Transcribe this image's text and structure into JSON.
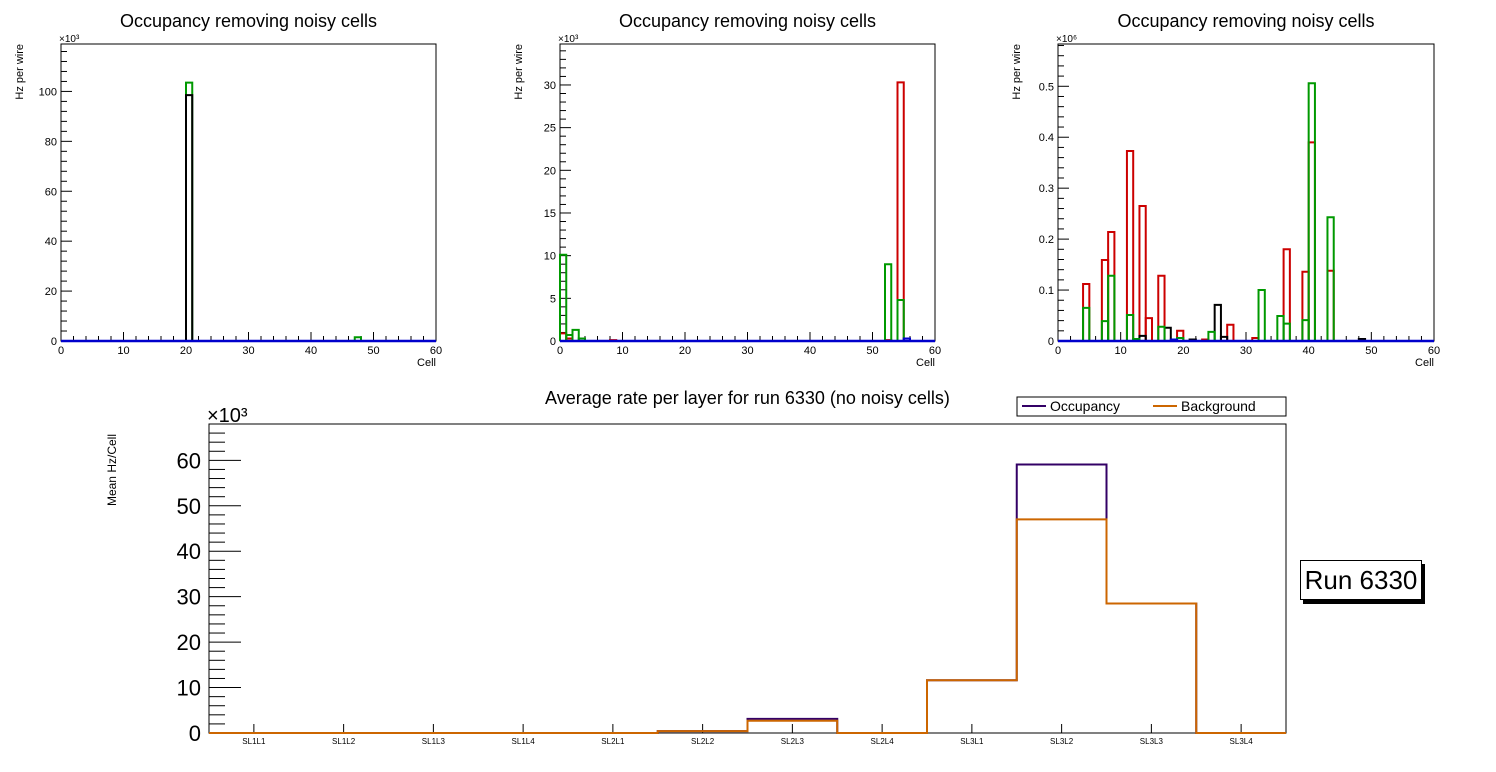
{
  "chart_data": [
    {
      "type": "histogram",
      "title": "Occupancy removing noisy cells",
      "xlabel": "Cell",
      "ylabel": "Hz per wire",
      "y_multiplier": "×10³",
      "xlim": [
        0,
        60
      ],
      "ylim": [
        0,
        119
      ],
      "x_ticks": [
        "0",
        "10",
        "20",
        "30",
        "40",
        "50",
        "60"
      ],
      "y_ticks": [
        "0",
        "20",
        "40",
        "60",
        "80",
        "100"
      ],
      "y_tick_values": [
        0,
        20,
        40,
        60,
        80,
        100
      ],
      "series": [
        {
          "name": "layer-green",
          "color": "#009900",
          "bins": [
            {
              "x": 20,
              "w": 1,
              "v": 103.5
            },
            {
              "x": 47,
              "w": 1,
              "v": 1.5
            }
          ]
        },
        {
          "name": "layer-black",
          "color": "#000000",
          "bins": [
            {
              "x": 20,
              "w": 1,
              "v": 98.5
            }
          ]
        },
        {
          "name": "layer-red",
          "color": "#cc0000",
          "bins": []
        },
        {
          "name": "layer-blue",
          "color": "#0000cc",
          "bins": [
            {
              "x": 0,
              "w": 60,
              "v": 0
            }
          ]
        }
      ]
    },
    {
      "type": "histogram",
      "title": "Occupancy removing noisy cells",
      "xlabel": "Cell",
      "ylabel": "Hz per wire",
      "y_multiplier": "×10³",
      "xlim": [
        0,
        60
      ],
      "ylim": [
        0,
        34.8
      ],
      "x_ticks": [
        "0",
        "10",
        "20",
        "30",
        "40",
        "50",
        "60"
      ],
      "y_ticks": [
        "0",
        "5",
        "10",
        "15",
        "20",
        "25",
        "30"
      ],
      "y_tick_values": [
        0,
        5,
        10,
        15,
        20,
        25,
        30
      ],
      "series": [
        {
          "name": "layer-red",
          "color": "#cc0000",
          "bins": [
            {
              "x": 0,
              "w": 1,
              "v": 0.9
            },
            {
              "x": 1,
              "w": 1,
              "v": 0.3
            },
            {
              "x": 8,
              "w": 1,
              "v": 0.1
            },
            {
              "x": 52,
              "w": 1,
              "v": 0.1
            },
            {
              "x": 54,
              "w": 1,
              "v": 30.3
            }
          ]
        },
        {
          "name": "layer-green",
          "color": "#009900",
          "bins": [
            {
              "x": 0,
              "w": 1,
              "v": 10.1
            },
            {
              "x": 1,
              "w": 1,
              "v": 0.7
            },
            {
              "x": 2,
              "w": 1,
              "v": 1.3
            },
            {
              "x": 3,
              "w": 1,
              "v": 0.3
            },
            {
              "x": 52,
              "w": 1,
              "v": 9.0
            },
            {
              "x": 54,
              "w": 1,
              "v": 4.8
            }
          ]
        },
        {
          "name": "layer-blue",
          "color": "#0000cc",
          "bins": [
            {
              "x": 0,
              "w": 60,
              "v": 0
            },
            {
              "x": 55,
              "w": 1,
              "v": 0.3
            }
          ]
        }
      ]
    },
    {
      "type": "histogram",
      "title": "Occupancy removing noisy cells",
      "xlabel": "Cell",
      "ylabel": "Hz per wire",
      "y_multiplier": "×10⁶",
      "xlim": [
        0,
        60
      ],
      "ylim": [
        0,
        0.583
      ],
      "x_ticks": [
        "0",
        "10",
        "20",
        "30",
        "40",
        "50",
        "60"
      ],
      "y_ticks": [
        "0",
        "0.1",
        "0.2",
        "0.3",
        "0.4",
        "0.5"
      ],
      "y_tick_values": [
        0,
        0.1,
        0.2,
        0.3,
        0.4,
        0.5
      ],
      "series": [
        {
          "name": "layer-red",
          "color": "#cc0000",
          "bins": [
            {
              "x": 4,
              "w": 1,
              "v": 0.112
            },
            {
              "x": 7,
              "w": 1,
              "v": 0.159
            },
            {
              "x": 8,
              "w": 1,
              "v": 0.214
            },
            {
              "x": 11,
              "w": 1,
              "v": 0.373
            },
            {
              "x": 13,
              "w": 1,
              "v": 0.265
            },
            {
              "x": 14,
              "w": 1,
              "v": 0.045
            },
            {
              "x": 16,
              "w": 1,
              "v": 0.128
            },
            {
              "x": 19,
              "w": 1,
              "v": 0.02
            },
            {
              "x": 23,
              "w": 1,
              "v": 0.003
            },
            {
              "x": 27,
              "w": 1,
              "v": 0.032
            },
            {
              "x": 31,
              "w": 1,
              "v": 0.006
            },
            {
              "x": 36,
              "w": 1,
              "v": 0.18
            },
            {
              "x": 39,
              "w": 1,
              "v": 0.136
            },
            {
              "x": 40,
              "w": 1,
              "v": 0.39
            },
            {
              "x": 43,
              "w": 1,
              "v": 0.138
            }
          ]
        },
        {
          "name": "layer-black",
          "color": "#000000",
          "bins": [
            {
              "x": 13,
              "w": 1,
              "v": 0.01
            },
            {
              "x": 17,
              "w": 1,
              "v": 0.026
            },
            {
              "x": 21,
              "w": 1,
              "v": 0.003
            },
            {
              "x": 25,
              "w": 1,
              "v": 0.071
            },
            {
              "x": 26,
              "w": 1,
              "v": 0.008
            },
            {
              "x": 48,
              "w": 1,
              "v": 0.004
            }
          ]
        },
        {
          "name": "layer-green",
          "color": "#009900",
          "bins": [
            {
              "x": 4,
              "w": 1,
              "v": 0.065
            },
            {
              "x": 7,
              "w": 1,
              "v": 0.039
            },
            {
              "x": 8,
              "w": 1,
              "v": 0.128
            },
            {
              "x": 11,
              "w": 1,
              "v": 0.051
            },
            {
              "x": 12,
              "w": 1,
              "v": 0.004
            },
            {
              "x": 16,
              "w": 1,
              "v": 0.028
            },
            {
              "x": 19,
              "w": 1,
              "v": 0.006
            },
            {
              "x": 24,
              "w": 1,
              "v": 0.018
            },
            {
              "x": 32,
              "w": 1,
              "v": 0.1
            },
            {
              "x": 35,
              "w": 1,
              "v": 0.049
            },
            {
              "x": 36,
              "w": 1,
              "v": 0.034
            },
            {
              "x": 39,
              "w": 1,
              "v": 0.041
            },
            {
              "x": 40,
              "w": 1,
              "v": 0.506
            },
            {
              "x": 43,
              "w": 1,
              "v": 0.243
            }
          ]
        },
        {
          "name": "layer-blue",
          "color": "#0000cc",
          "bins": [
            {
              "x": 0,
              "w": 60,
              "v": 0
            },
            {
              "x": 18,
              "w": 1,
              "v": 0.003
            }
          ]
        }
      ]
    },
    {
      "type": "histogram",
      "title": "Average rate per layer for run 6330 (no noisy cells)",
      "xlabel": "",
      "ylabel": "Mean Hz/Cell",
      "y_multiplier": "×10³",
      "ylim": [
        0,
        68
      ],
      "categories": [
        "SL1L1",
        "SL1L2",
        "SL1L3",
        "SL1L4",
        "SL2L1",
        "SL2L2",
        "SL2L3",
        "SL2L4",
        "SL3L1",
        "SL3L2",
        "SL3L3",
        "SL3L4"
      ],
      "y_ticks": [
        "0",
        "10",
        "20",
        "30",
        "40",
        "50",
        "60"
      ],
      "y_tick_values": [
        0,
        10,
        20,
        30,
        40,
        50,
        60
      ],
      "legend": {
        "position": "top-right",
        "entries": [
          "Occupancy",
          "Background"
        ]
      },
      "series": [
        {
          "name": "Occupancy",
          "color": "#330066",
          "values": [
            0,
            0,
            0,
            0,
            0,
            0.4,
            3.1,
            0,
            11.6,
            59.1,
            28.5,
            0
          ]
        },
        {
          "name": "Background",
          "color": "#cc6600",
          "values": [
            0,
            0,
            0,
            0,
            0,
            0.4,
            2.7,
            0,
            11.6,
            47.0,
            28.5,
            0
          ]
        }
      ]
    }
  ],
  "run_label": "Run 6330"
}
